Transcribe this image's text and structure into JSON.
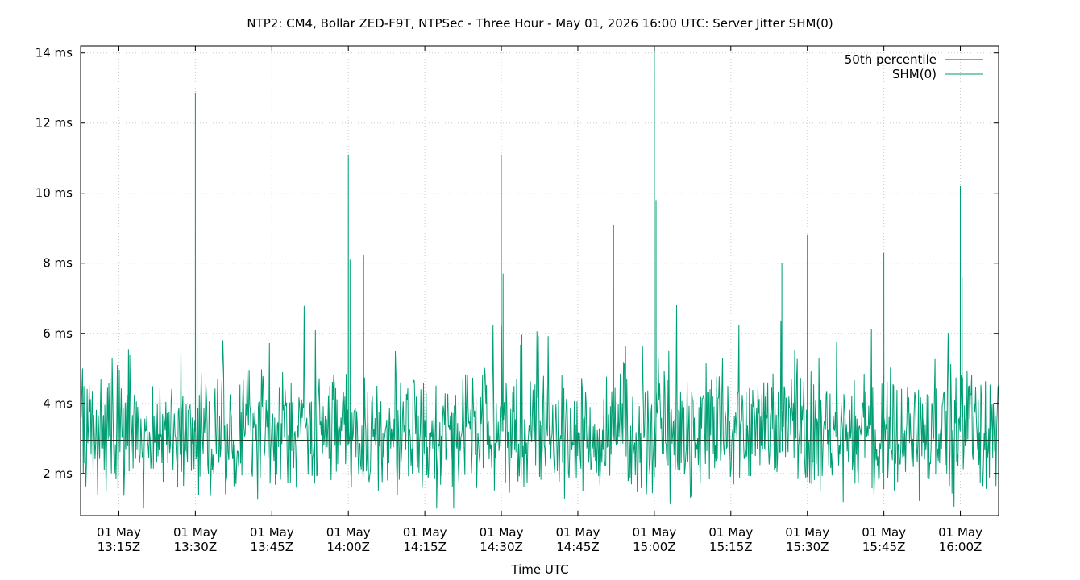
{
  "chart_data": {
    "type": "line",
    "title": "NTP2: CM4, Bollar ZED-F9T, NTPSec - Three Hour - May 01, 2026 16:00 UTC: Server Jitter SHM(0)",
    "xlabel": "Time UTC",
    "ylabel": "",
    "x_range": [
      "2026-05-01T13:07:30Z",
      "2026-05-01T16:07:30Z"
    ],
    "ylim": [
      0.8,
      14.2
    ],
    "y_ticks": [
      {
        "value": 2,
        "label": "2 ms"
      },
      {
        "value": 4,
        "label": "4 ms"
      },
      {
        "value": 6,
        "label": "6 ms"
      },
      {
        "value": 8,
        "label": "8 ms"
      },
      {
        "value": 10,
        "label": "10 ms"
      },
      {
        "value": 12,
        "label": "12 ms"
      },
      {
        "value": 14,
        "label": "14 ms"
      }
    ],
    "x_ticks": [
      {
        "value": "2026-05-01T13:15:00Z",
        "line1": "01 May",
        "line2": "13:15Z"
      },
      {
        "value": "2026-05-01T13:30:00Z",
        "line1": "01 May",
        "line2": "13:30Z"
      },
      {
        "value": "2026-05-01T13:45:00Z",
        "line1": "01 May",
        "line2": "13:45Z"
      },
      {
        "value": "2026-05-01T14:00:00Z",
        "line1": "01 May",
        "line2": "14:00Z"
      },
      {
        "value": "2026-05-01T14:15:00Z",
        "line1": "01 May",
        "line2": "14:15Z"
      },
      {
        "value": "2026-05-01T14:30:00Z",
        "line1": "01 May",
        "line2": "14:30Z"
      },
      {
        "value": "2026-05-01T14:45:00Z",
        "line1": "01 May",
        "line2": "14:45Z"
      },
      {
        "value": "2026-05-01T15:00:00Z",
        "line1": "01 May",
        "line2": "15:00Z"
      },
      {
        "value": "2026-05-01T15:15:00Z",
        "line1": "01 May",
        "line2": "15:15Z"
      },
      {
        "value": "2026-05-01T15:30:00Z",
        "line1": "01 May",
        "line2": "15:30Z"
      },
      {
        "value": "2026-05-01T15:45:00Z",
        "line1": "01 May",
        "line2": "15:45Z"
      },
      {
        "value": "2026-05-01T16:00:00Z",
        "line1": "01 May",
        "line2": "16:00Z"
      }
    ],
    "grid": true,
    "legend_position": "top-right",
    "series": [
      {
        "name": "50th percentile",
        "color": "#94007f",
        "constant": 2.95
      },
      {
        "name": "SHM(0)",
        "color": "#009e73",
        "baseline": 3.2,
        "low": 1.0,
        "high": 6.8,
        "spikes": [
          {
            "x": "2026-05-01T13:30:00Z",
            "y": 12.85
          },
          {
            "x": "2026-05-01T13:30:20Z",
            "y": 8.55
          },
          {
            "x": "2026-05-01T14:00:00Z",
            "y": 11.1
          },
          {
            "x": "2026-05-01T14:00:20Z",
            "y": 8.1
          },
          {
            "x": "2026-05-01T14:03:00Z",
            "y": 8.25
          },
          {
            "x": "2026-05-01T14:30:00Z",
            "y": 11.1
          },
          {
            "x": "2026-05-01T14:30:20Z",
            "y": 7.7
          },
          {
            "x": "2026-05-01T14:52:00Z",
            "y": 9.1
          },
          {
            "x": "2026-05-01T15:00:00Z",
            "y": 14.2
          },
          {
            "x": "2026-05-01T15:00:20Z",
            "y": 9.8
          },
          {
            "x": "2026-05-01T15:25:00Z",
            "y": 8.0
          },
          {
            "x": "2026-05-01T15:30:00Z",
            "y": 8.8
          },
          {
            "x": "2026-05-01T15:45:00Z",
            "y": 8.3
          },
          {
            "x": "2026-05-01T16:00:00Z",
            "y": 10.2
          },
          {
            "x": "2026-05-01T16:00:20Z",
            "y": 7.6
          }
        ]
      }
    ]
  }
}
